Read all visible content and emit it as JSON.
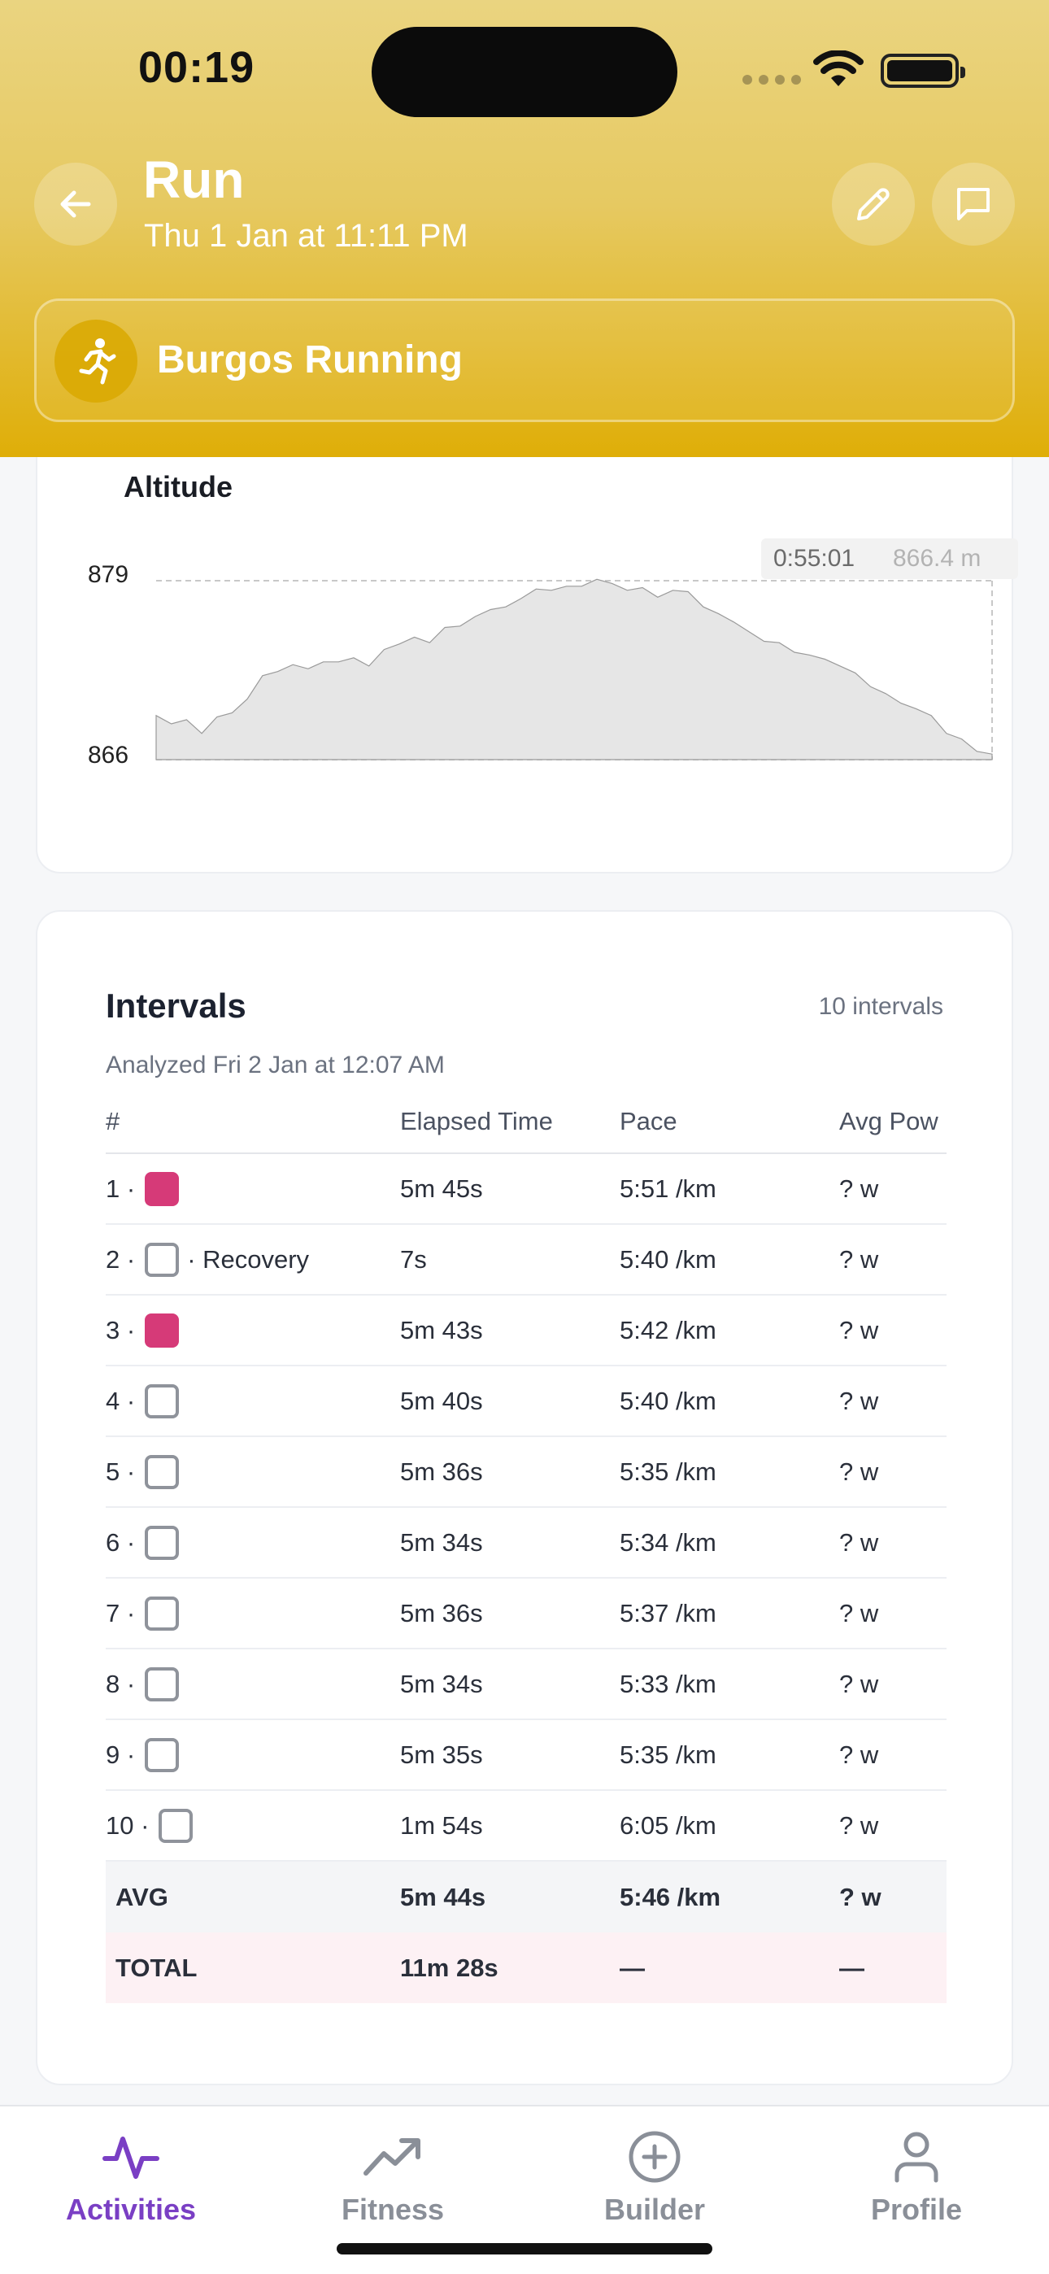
{
  "status_bar": {
    "time": "00:19"
  },
  "header": {
    "title": "Run",
    "subtitle": "Thu 1 Jan at 11:11 PM",
    "activity_type": "Burgos Running",
    "accent": "#dfae08"
  },
  "altitude": {
    "title": "Altitude",
    "tooltip_time": "0:55:01",
    "tooltip_value": "866.4 m"
  },
  "chart_data": {
    "type": "area",
    "title": "Altitude",
    "xlabel": "",
    "ylabel": "",
    "ylim": [
      866,
      879
    ],
    "y_ticks": [
      "879",
      "866"
    ],
    "x": [
      0,
      1,
      2,
      3,
      4,
      5,
      6,
      7,
      8,
      9,
      10,
      11,
      12,
      13,
      14,
      15,
      16,
      17,
      18,
      19,
      20,
      21,
      22,
      23,
      24,
      25,
      26,
      27,
      28,
      29,
      30,
      31,
      32,
      33,
      34,
      35,
      36,
      37,
      38,
      39,
      40,
      41,
      42,
      43,
      44,
      45,
      46,
      47,
      48,
      49,
      50,
      51,
      52,
      53,
      54,
      55
    ],
    "values": [
      869.2,
      868.6,
      868.9,
      867.9,
      869.1,
      869.4,
      870.4,
      872.1,
      872.4,
      872.9,
      872.6,
      873.1,
      873.1,
      873.4,
      872.8,
      874.0,
      874.4,
      874.9,
      874.5,
      875.6,
      875.7,
      876.4,
      876.9,
      877.1,
      877.7,
      878.4,
      878.3,
      878.6,
      878.6,
      879.1,
      878.8,
      878.3,
      878.5,
      877.8,
      878.3,
      878.2,
      877.1,
      876.6,
      876.0,
      875.3,
      874.6,
      874.5,
      873.8,
      873.6,
      873.3,
      872.8,
      872.3,
      871.3,
      870.8,
      870.1,
      869.7,
      869.2,
      867.9,
      867.5,
      866.6,
      866.4
    ],
    "series_color": "#e6e6e6",
    "grid": false
  },
  "intervals": {
    "title": "Intervals",
    "count_label": "10 intervals",
    "analyzed": "Analyzed Fri 2 Jan at 12:07 AM",
    "columns": [
      "#",
      "Elapsed Time",
      "Pace",
      "Avg Pow"
    ],
    "rows": [
      {
        "num": "1 ·",
        "swatch": "filled",
        "extra": "",
        "time": "5m 45s",
        "pace": "5:51 /km",
        "power": "? w"
      },
      {
        "num": "2 ·",
        "swatch": "empty",
        "extra": "· Recovery",
        "time": "7s",
        "pace": "5:40 /km",
        "power": "? w"
      },
      {
        "num": "3 ·",
        "swatch": "filled",
        "extra": "",
        "time": "5m 43s",
        "pace": "5:42 /km",
        "power": "? w"
      },
      {
        "num": "4 ·",
        "swatch": "empty",
        "extra": "",
        "time": "5m 40s",
        "pace": "5:40 /km",
        "power": "? w"
      },
      {
        "num": "5 ·",
        "swatch": "empty",
        "extra": "",
        "time": "5m 36s",
        "pace": "5:35 /km",
        "power": "? w"
      },
      {
        "num": "6 ·",
        "swatch": "empty",
        "extra": "",
        "time": "5m 34s",
        "pace": "5:34 /km",
        "power": "? w"
      },
      {
        "num": "7 ·",
        "swatch": "empty",
        "extra": "",
        "time": "5m 36s",
        "pace": "5:37 /km",
        "power": "? w"
      },
      {
        "num": "8 ·",
        "swatch": "empty",
        "extra": "",
        "time": "5m 34s",
        "pace": "5:33 /km",
        "power": "? w"
      },
      {
        "num": "9 ·",
        "swatch": "empty",
        "extra": "",
        "time": "5m 35s",
        "pace": "5:35 /km",
        "power": "? w"
      },
      {
        "num": "10 ·",
        "swatch": "empty",
        "extra": "",
        "time": "1m 54s",
        "pace": "6:05 /km",
        "power": "? w"
      }
    ],
    "avg": {
      "label": "AVG",
      "time": "5m 44s",
      "pace": "5:46 /km",
      "power": "? w"
    },
    "total": {
      "label": "TOTAL",
      "time": "11m 28s",
      "pace": "—",
      "power": "—"
    },
    "work_color": "#d63a78"
  },
  "tabs": [
    {
      "label": "Activities",
      "icon": "activity-pulse-icon",
      "active": true
    },
    {
      "label": "Fitness",
      "icon": "trending-up-icon",
      "active": false
    },
    {
      "label": "Builder",
      "icon": "plus-circle-icon",
      "active": false
    },
    {
      "label": "Profile",
      "icon": "user-icon",
      "active": false
    }
  ]
}
